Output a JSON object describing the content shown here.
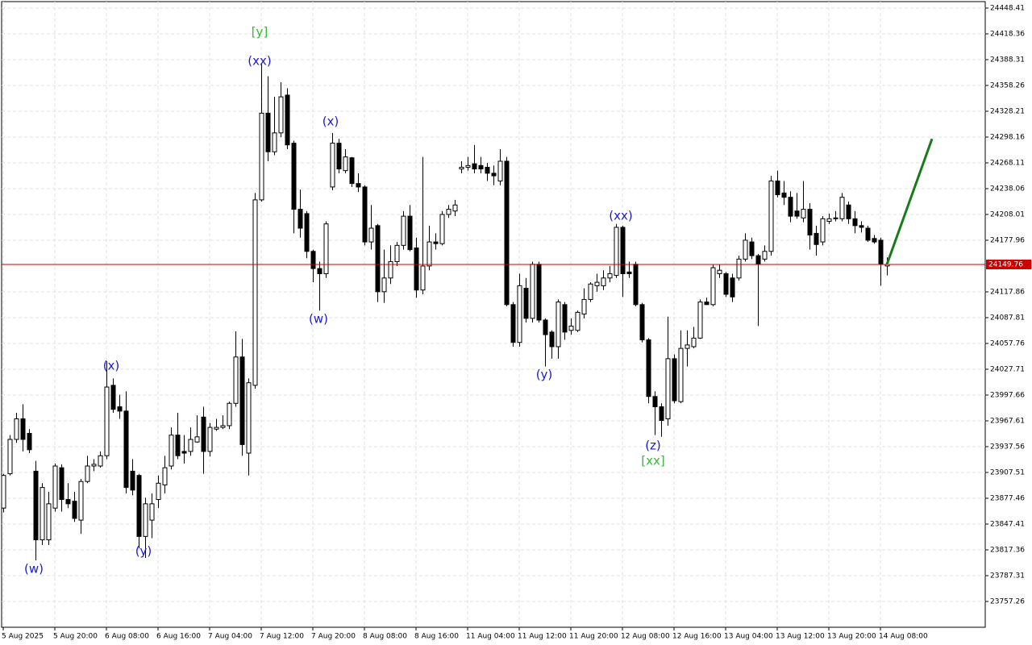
{
  "chart_data": {
    "type": "candlestick",
    "grid": true,
    "open": [
      23866,
      23906,
      23946,
      23970,
      23953,
      23909,
      23829,
      23829,
      23866,
      23913,
      23876,
      23874,
      23852,
      23897,
      23915,
      23915,
      23927,
      24009,
      23984,
      23979,
      23909,
      23904,
      23833,
      23852,
      23876,
      23893,
      23915,
      23951,
      23932,
      23932,
      23943,
      23972,
      23932,
      23958,
      23960,
      23962,
      23988,
      24042,
      23930,
      24009,
      24225,
      24326,
      24281,
      24303,
      24347,
      24291,
      24214,
      24209,
      24165,
      24145,
      24139,
      24240,
      24291,
      24259,
      24274,
      24244,
      24240,
      24176,
      24195,
      24118,
      24134,
      24153,
      24172,
      24206,
      24169,
      24120,
      24148,
      24176,
      24174,
      24208,
      24212,
      24261,
      24263,
      24267,
      24265,
      24263,
      24256,
      24247,
      24270,
      24103,
      24059,
      24122,
      24087,
      24150,
      24085,
      24071,
      24054,
      24103,
      24073,
      24073,
      24092,
      24109,
      24125,
      24125,
      24134,
      24137,
      24193,
      24141,
      24150,
      24103,
      24062,
      23996,
      23984,
      23970,
      24040,
      23990,
      24052,
      24054,
      24064,
      24106,
      24103,
      24139,
      24139,
      24134,
      24134,
      24156,
      24176,
      24160,
      24156,
      24165,
      24247,
      24233,
      24228,
      24212,
      24204,
      24214,
      24186,
      24176,
      24200,
      24203,
      24203,
      24219,
      24203,
      24195,
      24192,
      24180,
      24178,
      24148
    ],
    "high": [
      23906,
      23951,
      23977,
      23987,
      23958,
      23921,
      23895,
      23885,
      23918,
      23917,
      23895,
      23885,
      23900,
      23927,
      23923,
      23932,
      24037,
      24017,
      23998,
      24002,
      23923,
      23906,
      23878,
      23883,
      23904,
      23927,
      23960,
      23977,
      23951,
      23960,
      23974,
      23984,
      23965,
      23970,
      23974,
      23990,
      24072,
      24063,
      24017,
      24233,
      24383,
      24369,
      24345,
      24362,
      24355,
      24294,
      24237,
      24212,
      24167,
      24153,
      24200,
      24303,
      24296,
      24284,
      24275,
      24256,
      24242,
      24219,
      24197,
      24167,
      24172,
      24176,
      24212,
      24219,
      24181,
      24275,
      24195,
      24186,
      24212,
      24219,
      24225,
      24270,
      24275,
      24289,
      24275,
      24268,
      24265,
      24284,
      24275,
      24106,
      24139,
      24134,
      24153,
      24153,
      24087,
      24073,
      24109,
      24106,
      24087,
      24096,
      24122,
      24129,
      24139,
      24143,
      24148,
      24197,
      24195,
      24153,
      24153,
      24105,
      24064,
      24002,
      23988,
      24089,
      24045,
      24073,
      24073,
      24077,
      24109,
      24111,
      24150,
      24150,
      24141,
      24139,
      24160,
      24186,
      24181,
      24162,
      24172,
      24253,
      24259,
      24247,
      24235,
      24233,
      24247,
      24221,
      24195,
      24206,
      24209,
      24212,
      24233,
      24223,
      24212,
      24200,
      24195,
      24184,
      24181,
      24158
    ],
    "low": [
      23861,
      23904,
      23942,
      23932,
      23930,
      23805,
      23823,
      23823,
      23862,
      23862,
      23866,
      23850,
      23836,
      23895,
      23909,
      23913,
      23923,
      23977,
      23970,
      23883,
      23881,
      23819,
      23808,
      23831,
      23866,
      23883,
      23911,
      23923,
      23918,
      23927,
      23942,
      23906,
      23926,
      23956,
      23958,
      23958,
      23984,
      23927,
      23904,
      24005,
      24223,
      24270,
      24277,
      24298,
      24284,
      24186,
      24181,
      24157,
      24129,
      24096,
      24134,
      24236,
      24256,
      24256,
      24240,
      24234,
      24172,
      24167,
      24106,
      24105,
      24127,
      24148,
      24167,
      24165,
      24111,
      24115,
      24143,
      24167,
      24172,
      24204,
      24206,
      24256,
      24259,
      24256,
      24256,
      24247,
      24242,
      24242,
      24101,
      24054,
      24054,
      24082,
      24082,
      24082,
      24031,
      24040,
      24040,
      24062,
      24068,
      24071,
      24087,
      24106,
      24118,
      24120,
      24129,
      24134,
      24112,
      24134,
      24101,
      24059,
      23988,
      23951,
      23949,
      23962,
      23988,
      23988,
      24031,
      24052,
      24063,
      24103,
      24101,
      24134,
      24112,
      24106,
      24131,
      24153,
      24156,
      24078,
      24153,
      24160,
      24228,
      24219,
      24199,
      24203,
      24199,
      24167,
      24160,
      24172,
      24197,
      24200,
      24200,
      24197,
      24186,
      24187,
      24176,
      24174,
      24125,
      24137
    ],
    "close": [
      23904,
      23946,
      23970,
      23946,
      23934,
      23829,
      23890,
      23871,
      23915,
      23876,
      23871,
      23854,
      23897,
      23915,
      23917,
      23927,
      24007,
      23981,
      23979,
      23890,
      23887,
      23833,
      23871,
      23871,
      23895,
      23913,
      23951,
      23927,
      23930,
      23946,
      23949,
      23932,
      23960,
      23960,
      23962,
      23988,
      24042,
      23940,
      24012,
      24225,
      24326,
      24281,
      24303,
      24345,
      24289,
      24214,
      24192,
      24165,
      24145,
      24139,
      24197,
      24291,
      24261,
      24275,
      24244,
      24240,
      24176,
      24192,
      24118,
      24134,
      24153,
      24172,
      24206,
      24167,
      24120,
      24148,
      24176,
      24174,
      24208,
      24214,
      24219,
      24263,
      24265,
      24261,
      24261,
      24256,
      24253,
      24270,
      24103,
      24059,
      24125,
      24087,
      24150,
      24085,
      24068,
      24054,
      24106,
      24071,
      24078,
      24094,
      24109,
      24127,
      24129,
      24134,
      24139,
      24193,
      24139,
      24139,
      24103,
      24062,
      23996,
      23984,
      23968,
      24040,
      23991,
      24052,
      24056,
      24064,
      24106,
      24103,
      24146,
      24143,
      24115,
      24112,
      24156,
      24178,
      24160,
      24150,
      24165,
      24247,
      24231,
      24228,
      24206,
      24206,
      24214,
      24184,
      24173,
      24203,
      24203,
      24204,
      24228,
      24203,
      24195,
      24193,
      24178,
      24176,
      24150,
      24149.76
    ],
    "xlim": [
      -0.25,
      152.25
    ],
    "xticks": [
      {
        "value": 0,
        "label": "5 Aug 2025"
      },
      {
        "value": 8,
        "label": "5 Aug 20:00"
      },
      {
        "value": 16,
        "label": "6 Aug 08:00"
      },
      {
        "value": 24,
        "label": "6 Aug 16:00"
      },
      {
        "value": 32,
        "label": "7 Aug 04:00"
      },
      {
        "value": 40,
        "label": "7 Aug 12:00"
      },
      {
        "value": 48,
        "label": "7 Aug 20:00"
      },
      {
        "value": 56,
        "label": "8 Aug 08:00"
      },
      {
        "value": 64,
        "label": "8 Aug 16:00"
      },
      {
        "value": 72,
        "label": "11 Aug 04:00"
      },
      {
        "value": 80,
        "label": "11 Aug 12:00"
      },
      {
        "value": 88,
        "label": "11 Aug 20:00"
      },
      {
        "value": 96,
        "label": "12 Aug 08:00"
      },
      {
        "value": 104,
        "label": "12 Aug 16:00"
      },
      {
        "value": 112,
        "label": "13 Aug 04:00"
      },
      {
        "value": 120,
        "label": "13 Aug 12:00"
      },
      {
        "value": 128,
        "label": "13 Aug 20:00"
      },
      {
        "value": 136,
        "label": "14 Aug 08:00"
      }
    ],
    "ylim": [
      23727.2,
      24455.9
    ],
    "yticks": [
      24448.41,
      24418.36,
      24388.31,
      24358.26,
      24328.21,
      24298.16,
      24268.11,
      24238.06,
      24208.01,
      24177.96,
      24117.86,
      24087.81,
      24057.76,
      24027.71,
      23997.66,
      23967.61,
      23937.56,
      23907.51,
      23877.46,
      23847.41,
      23817.36,
      23787.31,
      23757.26
    ],
    "current_price": 24149.76,
    "price_color": "#cc0000",
    "projection": {
      "x": [
        137,
        144
      ],
      "y": [
        24149.76,
        24296
      ],
      "color": "#1a7a1a"
    },
    "annotations": [
      {
        "text": "[y]",
        "color": "#33bb33"
      },
      {
        "text": "(xx)",
        "color": "#1a1acc"
      },
      {
        "text": "(x)",
        "color": "#1a1acc"
      },
      {
        "text": "(w)",
        "color": "#1a1acc"
      },
      {
        "text": "(x)",
        "color": "#1a1acc"
      },
      {
        "text": "(w)",
        "color": "#1a1acc"
      },
      {
        "text": "(y)",
        "color": "#1a1acc"
      },
      {
        "text": "(y)",
        "color": "#1a1acc"
      },
      {
        "text": "(xx)",
        "color": "#1a1acc"
      },
      {
        "text": "(z)",
        "color": "#1a1acc"
      },
      {
        "text": "[xx]",
        "color": "#33bb33"
      }
    ]
  }
}
